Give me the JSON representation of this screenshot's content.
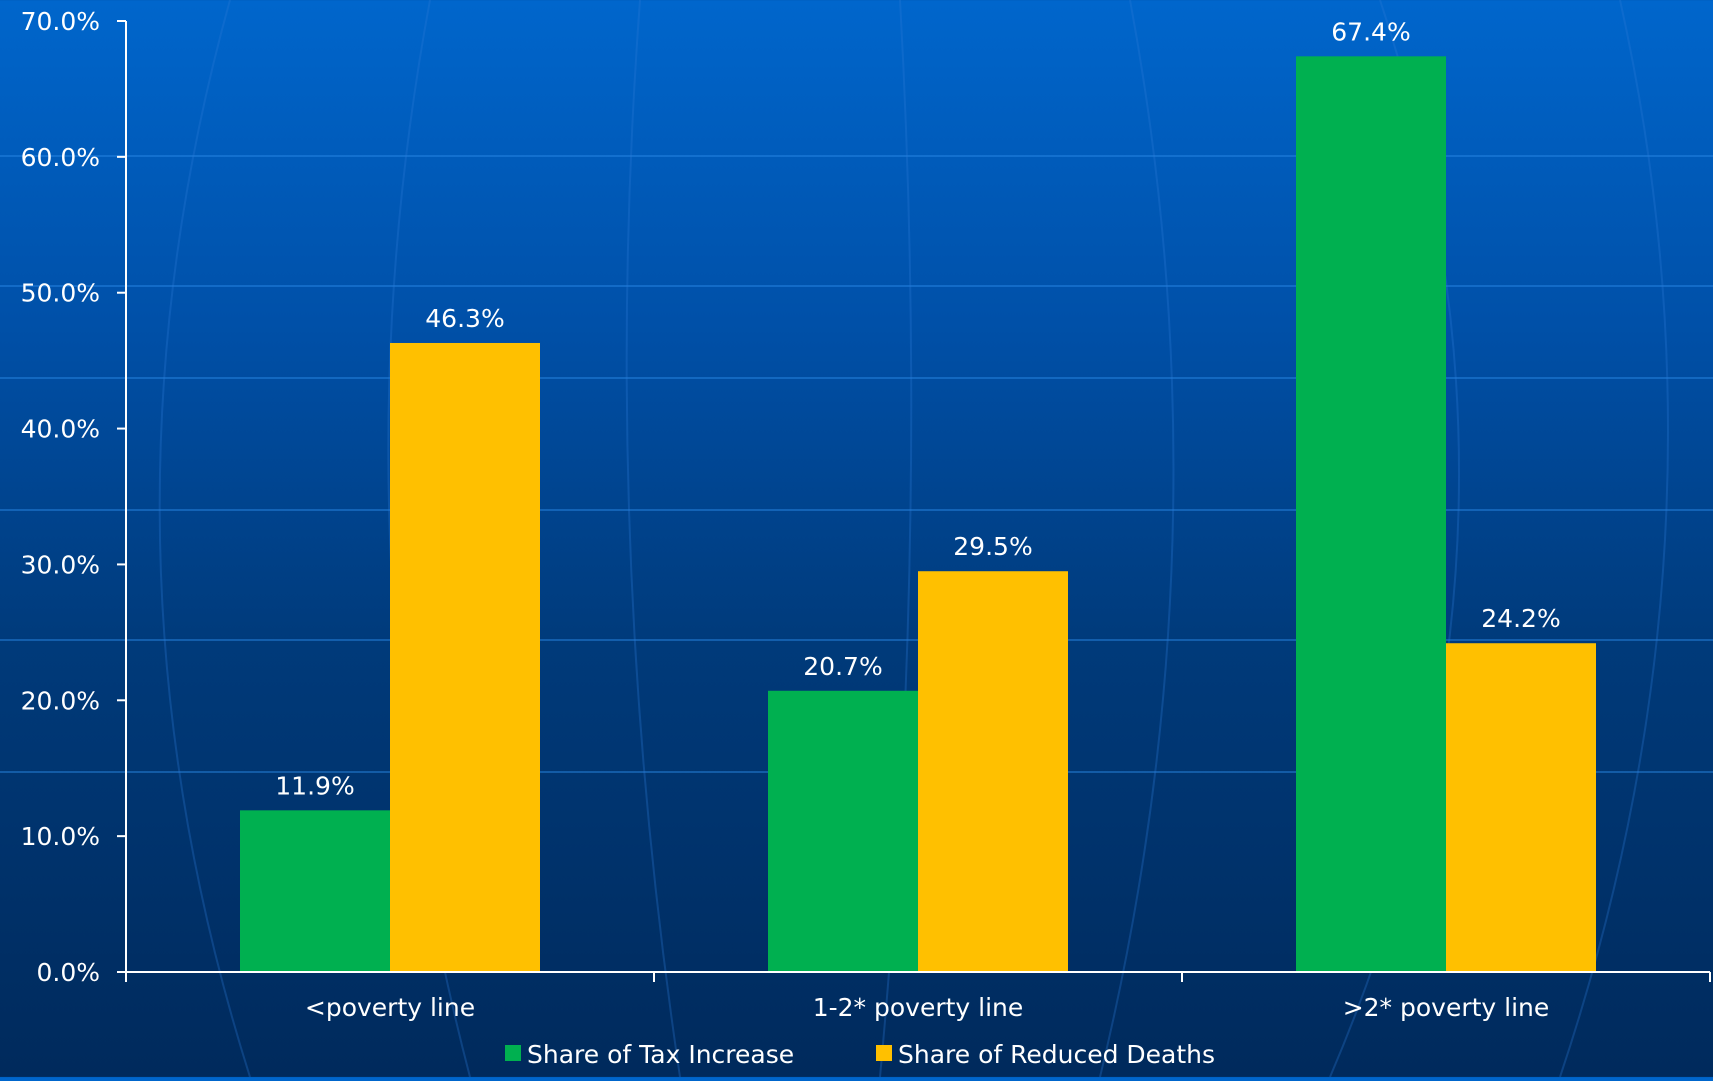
{
  "chart_data": {
    "type": "bar",
    "title": "",
    "xlabel": "",
    "ylabel": "",
    "categories": [
      "<poverty line",
      "1-2* poverty line",
      ">2* poverty line"
    ],
    "series": [
      {
        "name": "Share of Tax Increase",
        "values": [
          11.9,
          20.7,
          67.4
        ],
        "color": "#00b050"
      },
      {
        "name": "Share of Reduced Deaths",
        "values": [
          46.3,
          29.5,
          24.2
        ],
        "color": "#ffc000"
      }
    ],
    "data_labels": [
      [
        "11.9%",
        "20.7%",
        "67.4%"
      ],
      [
        "46.3%",
        "29.5%",
        "24.2%"
      ]
    ],
    "ylim": [
      0,
      70
    ],
    "yticks": [
      "0.0%",
      "10.0%",
      "20.0%",
      "30.0%",
      "40.0%",
      "50.0%",
      "60.0%",
      "70.0%"
    ],
    "ytick_values": [
      0,
      10,
      20,
      30,
      40,
      50,
      60,
      70
    ],
    "grid": false,
    "legend": "bottom-center",
    "background": "#0055b0",
    "axis_color": "#ffffff",
    "text_color": "#ffffff"
  }
}
